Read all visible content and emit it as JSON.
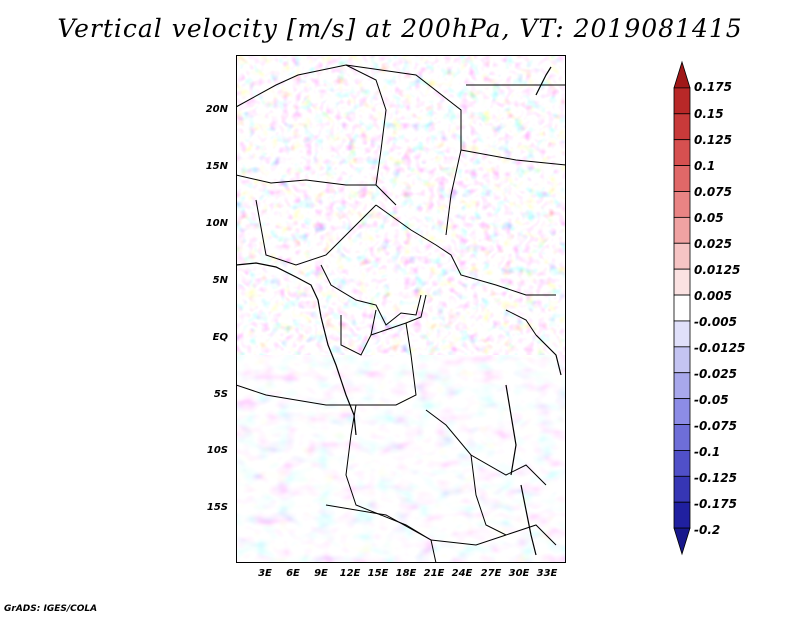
{
  "title": "Vertical velocity [m/s] at 200hPa, VT: 2019081415",
  "credit": "GrADS: IGES/COLA",
  "map": {
    "lat_ticks": [
      "20N",
      "15N",
      "10N",
      "5N",
      "EQ",
      "5S",
      "10S",
      "15S"
    ],
    "lon_ticks": [
      "3E",
      "6E",
      "9E",
      "12E",
      "15E",
      "18E",
      "21E",
      "24E",
      "27E",
      "30E",
      "33E"
    ]
  },
  "colorbar": {
    "labels": [
      "0.175",
      "0.15",
      "0.125",
      "0.1",
      "0.075",
      "0.05",
      "0.025",
      "0.0125",
      "0.005",
      "-0.005",
      "-0.0125",
      "-0.025",
      "-0.05",
      "-0.075",
      "-0.1",
      "-0.125",
      "-0.175",
      "-0.2"
    ],
    "colors": [
      "#a01818",
      "#b82828",
      "#c83a3a",
      "#d65050",
      "#e06868",
      "#e98484",
      "#f0a2a2",
      "#f6c4c4",
      "#fbe2e2",
      "#ffffff",
      "#e0e0fa",
      "#c4c4f2",
      "#a8a8ec",
      "#8c8ce6",
      "#6e6ed8",
      "#5050c8",
      "#3636b4",
      "#2020a0",
      "#18188c"
    ]
  }
}
